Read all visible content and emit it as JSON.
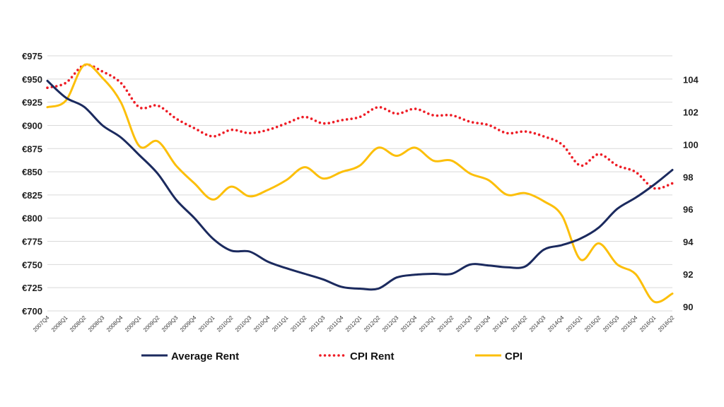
{
  "chart_data": {
    "type": "line",
    "title": "",
    "categories": [
      "2007Q4",
      "2008Q1",
      "2008Q2",
      "2008Q3",
      "2008Q4",
      "2009Q1",
      "2009Q2",
      "2009Q3",
      "2009Q4",
      "2010Q1",
      "2010Q2",
      "2010Q3",
      "2010Q4",
      "2011Q1",
      "2011Q2",
      "2011Q3",
      "2011Q4",
      "2012Q1",
      "2012Q2",
      "2012Q3",
      "2012Q4",
      "2013Q1",
      "2013Q2",
      "2013Q3",
      "2013Q4",
      "2014Q1",
      "2014Q2",
      "2014Q3",
      "2014Q4",
      "2015Q1",
      "2015Q2",
      "2015Q3",
      "2015Q4",
      "2016Q1",
      "2016Q2"
    ],
    "left_axis": {
      "min": 700,
      "max": 975,
      "step": 25,
      "tick_labels": [
        "€700",
        "€725",
        "€750",
        "€775",
        "€800",
        "€825",
        "€850",
        "€875",
        "€900",
        "€925",
        "€950",
        "€975"
      ]
    },
    "right_axis": {
      "min": 89.73,
      "max": 105.47,
      "tick_labels": [
        "90",
        "92",
        "94",
        "96",
        "98",
        "100",
        "102",
        "104"
      ]
    },
    "series": [
      {
        "name": "Average Rent",
        "axis": "left",
        "color": "#1b2a5e",
        "style": "solid",
        "values": [
          948,
          930,
          920,
          900,
          887,
          868,
          848,
          820,
          800,
          778,
          765,
          764,
          753,
          746,
          740,
          734,
          726,
          724,
          724,
          736,
          739,
          740,
          740,
          750,
          749,
          747,
          748,
          766,
          771,
          778,
          790,
          810,
          822,
          836,
          852
        ]
      },
      {
        "name": "CPI Rent",
        "axis": "right",
        "color": "#ee1c25",
        "style": "dotted",
        "values": [
          103.5,
          103.8,
          104.9,
          104.5,
          103.8,
          102.3,
          102.4,
          101.6,
          101.0,
          100.5,
          100.9,
          100.7,
          100.9,
          101.3,
          101.7,
          101.3,
          101.5,
          101.7,
          102.3,
          101.9,
          102.2,
          101.8,
          101.8,
          101.4,
          101.2,
          100.7,
          100.8,
          100.5,
          100.0,
          98.7,
          99.4,
          98.7,
          98.3,
          97.3,
          97.6
        ]
      },
      {
        "name": "CPI",
        "axis": "right",
        "color": "#fcbf0a",
        "style": "solid",
        "values": [
          102.3,
          102.7,
          104.9,
          104.1,
          102.6,
          99.9,
          100.2,
          98.7,
          97.6,
          96.6,
          97.4,
          96.8,
          97.2,
          97.8,
          98.6,
          97.9,
          98.3,
          98.7,
          99.8,
          99.3,
          99.8,
          99.0,
          99.0,
          98.2,
          97.8,
          96.9,
          97.0,
          96.5,
          95.6,
          92.9,
          93.9,
          92.6,
          92.0,
          90.3,
          90.8
        ]
      }
    ],
    "legend": {
      "position": "bottom",
      "entries": [
        "Average Rent",
        "CPI Rent",
        "CPI"
      ]
    }
  }
}
